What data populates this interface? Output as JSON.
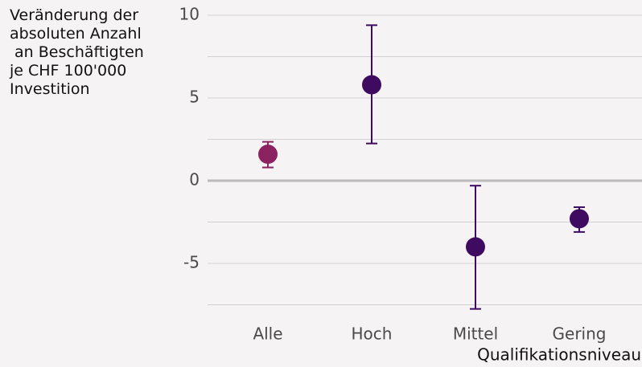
{
  "chart_data": {
    "type": "errorpoint",
    "y_label": "Veränderung der\nabsoluten Anzahl\n an Beschäftigten\nje CHF 100'000\nInvestition",
    "x_label": "Qualifikationsniveau",
    "categories": [
      "Alle",
      "Hoch",
      "Mittel",
      "Gering"
    ],
    "values": [
      1.6,
      5.8,
      -4.0,
      -2.3
    ],
    "lower": [
      0.8,
      2.25,
      -7.75,
      -3.1
    ],
    "upper": [
      2.35,
      9.4,
      -0.3,
      -1.6
    ],
    "colors": [
      "#8c2361",
      "#3f0b60",
      "#3f0b60",
      "#3f0b60"
    ],
    "ylim": [
      -7.8,
      10.5
    ],
    "yticks": [
      -5,
      0,
      5,
      10
    ],
    "minor_yticks": [
      -7.5,
      -2.5,
      2.5,
      7.5
    ],
    "grid": true
  }
}
